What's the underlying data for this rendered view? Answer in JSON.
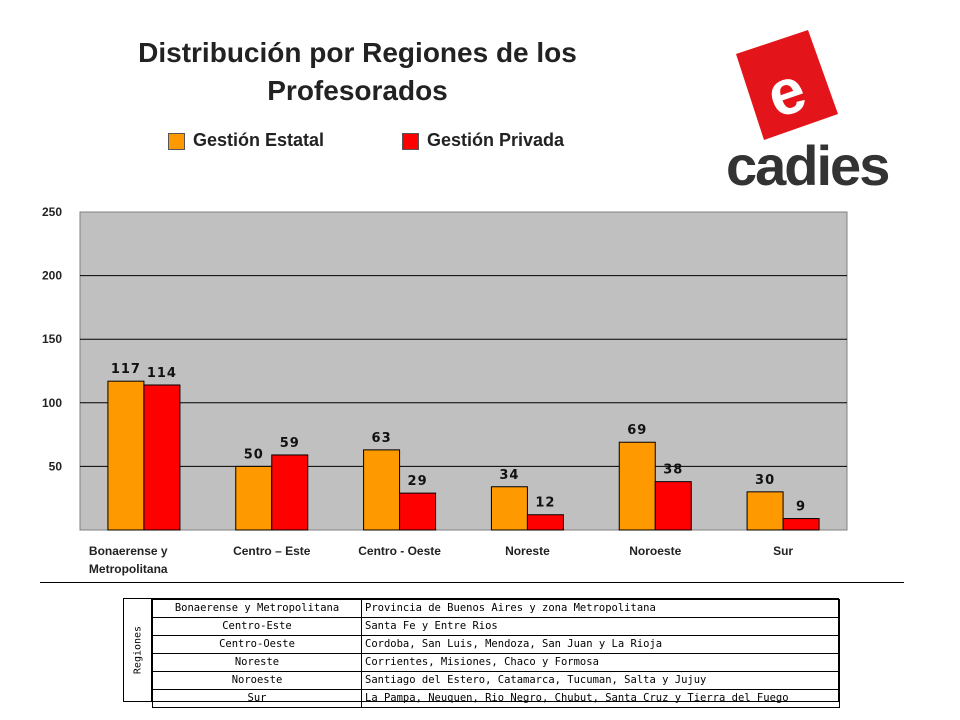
{
  "title": "Distribución por Regiones de los Profesorados",
  "legend": [
    {
      "label": "Gestión Estatal",
      "color": "#ff9900"
    },
    {
      "label": "Gestión Privada",
      "color": "#ff0000"
    }
  ],
  "logo": {
    "text": "cadies",
    "letter": "e",
    "icon": "cadies-logo"
  },
  "chart_data": {
    "type": "bar",
    "categories": [
      "Bonaerense y Metropolitana",
      "Centro – Este",
      "Centro - Oeste",
      "Noreste",
      "Noroeste",
      "Sur"
    ],
    "category_lines": [
      [
        "Bonaerense y",
        "Metropolitana"
      ],
      [
        "Centro – Este"
      ],
      [
        "Centro - Oeste"
      ],
      [
        "Noreste"
      ],
      [
        "Noroeste"
      ],
      [
        "Sur"
      ]
    ],
    "series": [
      {
        "name": "Gestión Estatal",
        "color": "#ff9900",
        "values": [
          117,
          50,
          63,
          34,
          69,
          30
        ]
      },
      {
        "name": "Gestión Privada",
        "color": "#ff0000",
        "values": [
          114,
          59,
          29,
          12,
          38,
          9
        ]
      }
    ],
    "yticks": [
      50,
      100,
      150,
      200,
      250
    ],
    "ylim": [
      0,
      250
    ],
    "grid": true,
    "plot_background": "#c0c0c0",
    "legend_position": "top"
  },
  "regions_table": {
    "row_header": "Regiones",
    "rows": [
      {
        "region": "Bonaerense y Metropolitana",
        "provinces": "Provincia de Buenos Aires y zona Metropolitana"
      },
      {
        "region": "Centro-Este",
        "provinces": "Santa Fe y Entre Rios"
      },
      {
        "region": "Centro-Oeste",
        "provinces": "Cordoba, San Luis, Mendoza, San Juan y La Rioja"
      },
      {
        "region": "Noreste",
        "provinces": "Corrientes, Misiones, Chaco y Formosa"
      },
      {
        "region": "Noroeste",
        "provinces": "Santiago del Estero, Catamarca, Tucuman, Salta y Jujuy"
      },
      {
        "region": "Sur",
        "provinces": "La Pampa, Neuquen, Rio Negro, Chubut, Santa Cruz y Tierra del Fuego"
      }
    ]
  }
}
